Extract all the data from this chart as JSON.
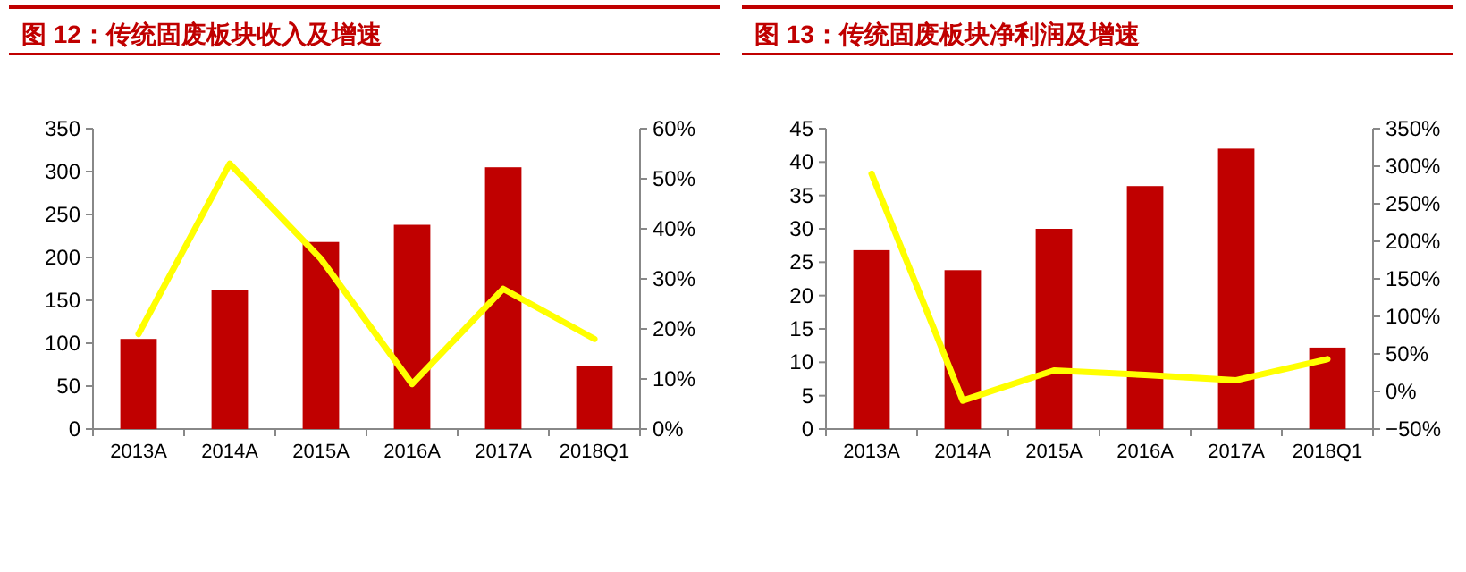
{
  "chart_data": [
    {
      "type": "bar",
      "title": "图 12：传统固废板块收入及增速",
      "categories": [
        "2013A",
        "2014A",
        "2015A",
        "2016A",
        "2017A",
        "2018Q1"
      ],
      "series": [
        {
          "color": "#c00000",
          "values": [
            105,
            162,
            218,
            238,
            305,
            73
          ]
        },
        {
          "type": "line",
          "axis": "y2",
          "color": "#ffff00",
          "values": [
            19,
            53,
            34,
            9,
            28,
            18
          ]
        }
      ],
      "ylim": [
        0,
        350
      ],
      "yticks": [
        0,
        50,
        100,
        150,
        200,
        250,
        300,
        350
      ],
      "y2lim": [
        0,
        60
      ],
      "y2ticks": [
        {
          "value": 0,
          "label": "0%"
        },
        {
          "value": 10,
          "label": "10%"
        },
        {
          "value": 20,
          "label": "20%"
        },
        {
          "value": 30,
          "label": "30%"
        },
        {
          "value": 40,
          "label": "40%"
        },
        {
          "value": 50,
          "label": "50%"
        },
        {
          "value": 60,
          "label": "60%"
        }
      ],
      "grid": false
    },
    {
      "type": "bar",
      "title": "图 13：传统固废板块净利润及增速",
      "categories": [
        "2013A",
        "2014A",
        "2015A",
        "2016A",
        "2017A",
        "2018Q1"
      ],
      "series": [
        {
          "color": "#c00000",
          "values": [
            26.8,
            23.8,
            30,
            36.4,
            42,
            12.2
          ]
        },
        {
          "type": "line",
          "axis": "y2",
          "color": "#ffff00",
          "values": [
            290,
            -12,
            28,
            22,
            15,
            43
          ]
        }
      ],
      "ylim": [
        0,
        45
      ],
      "yticks": [
        0,
        5,
        10,
        15,
        20,
        25,
        30,
        35,
        40,
        45
      ],
      "y2lim": [
        -50,
        350
      ],
      "y2ticks": [
        {
          "value": -50,
          "label": "−50%"
        },
        {
          "value": 0,
          "label": "0%"
        },
        {
          "value": 50,
          "label": "50%"
        },
        {
          "value": 100,
          "label": "100%"
        },
        {
          "value": 150,
          "label": "150%"
        },
        {
          "value": 200,
          "label": "200%"
        },
        {
          "value": 250,
          "label": "250%"
        },
        {
          "value": 300,
          "label": "300%"
        },
        {
          "value": 350,
          "label": "350%"
        }
      ],
      "grid": false
    }
  ]
}
